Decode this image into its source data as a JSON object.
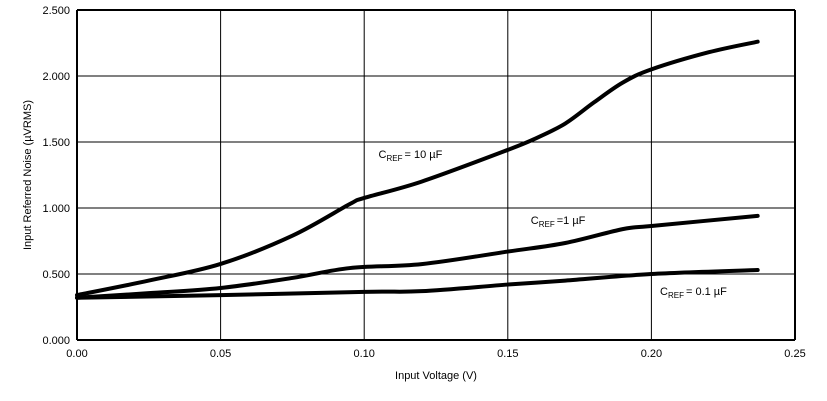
{
  "chart_data": {
    "type": "line",
    "title": "",
    "xlabel": "Input  Voltage (V)",
    "ylabel": "Input Referred Noise (µVRMS)",
    "xlim": [
      0,
      0.25
    ],
    "ylim": [
      0,
      2.5
    ],
    "grid": true,
    "xticks": [
      "0.00",
      "0.05",
      "0.10",
      "0.15",
      "0.20",
      "0.25"
    ],
    "yticks": [
      "0.000",
      "0.500",
      "1.000",
      "1.500",
      "2.000",
      "2.500"
    ],
    "series": [
      {
        "name": "CREF = 10 µF",
        "label_main": "C",
        "label_sub": "REF",
        "label_rest": "= 10 µF",
        "label_at": [
          0.105,
          1.38
        ],
        "x": [
          0,
          0.025,
          0.05,
          0.075,
          0.095,
          0.1,
          0.12,
          0.15,
          0.16,
          0.17,
          0.18,
          0.19,
          0.2,
          0.22,
          0.237
        ],
        "y": [
          0.34,
          0.45,
          0.576,
          0.79,
          1.03,
          1.076,
          1.2,
          1.44,
          1.53,
          1.64,
          1.8,
          1.95,
          2.05,
          2.18,
          2.26
        ]
      },
      {
        "name": "CREF =1 µF",
        "label_main": "C",
        "label_sub": "REF",
        "label_rest": "=1 µF",
        "label_at": [
          0.158,
          0.88
        ],
        "x": [
          0,
          0.025,
          0.05,
          0.075,
          0.095,
          0.12,
          0.15,
          0.17,
          0.19,
          0.2,
          0.237
        ],
        "y": [
          0.32,
          0.355,
          0.394,
          0.47,
          0.545,
          0.575,
          0.67,
          0.735,
          0.84,
          0.864,
          0.94
        ]
      },
      {
        "name": "CREF = 0.1 µF",
        "label_main": "C",
        "label_sub": "REF",
        "label_rest": "= 0.1 µF",
        "label_at": [
          0.203,
          0.34
        ],
        "x": [
          0,
          0.05,
          0.1,
          0.12,
          0.15,
          0.17,
          0.2,
          0.237
        ],
        "y": [
          0.32,
          0.34,
          0.365,
          0.37,
          0.42,
          0.45,
          0.5,
          0.53
        ]
      }
    ]
  }
}
